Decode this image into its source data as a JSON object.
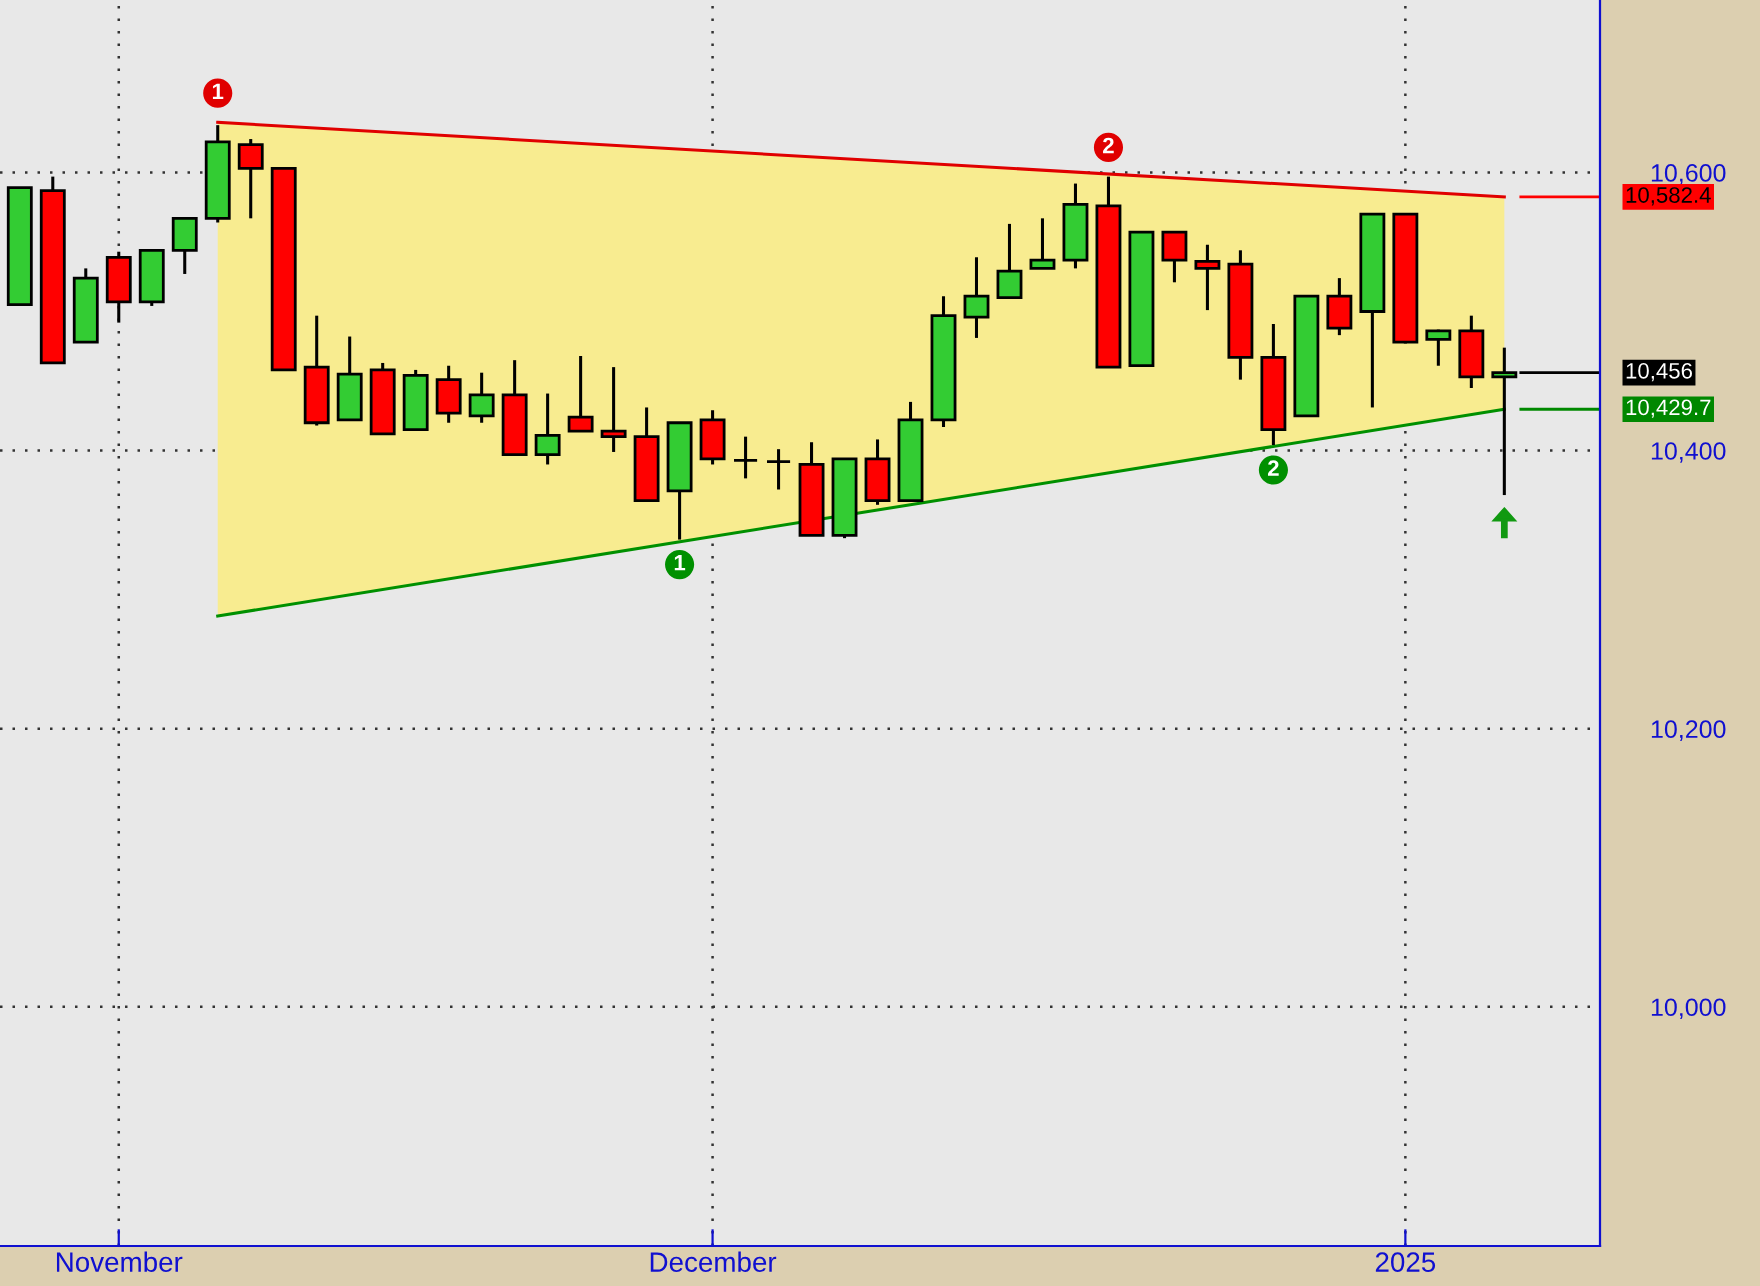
{
  "chart_data": {
    "type": "candlestick",
    "categories": [
      null,
      null,
      null,
      "November",
      null,
      null,
      null,
      null,
      null,
      null,
      null,
      null,
      null,
      null,
      null,
      null,
      null,
      null,
      null,
      null,
      null,
      "December",
      null,
      null,
      null,
      null,
      null,
      null,
      null,
      null,
      null,
      null,
      null,
      null,
      null,
      null,
      null,
      null,
      null,
      null,
      null,
      null,
      "2025",
      null,
      null,
      null
    ],
    "ohlc": [
      [
        10505,
        10589,
        10505,
        10589
      ],
      [
        10587,
        10597,
        10463,
        10463
      ],
      [
        10478,
        10531,
        10478,
        10524
      ],
      [
        10539,
        10543,
        10492,
        10507
      ],
      [
        10507,
        10544,
        10504,
        10544
      ],
      [
        10544,
        10567,
        10527,
        10567
      ],
      [
        10567,
        10634,
        10564,
        10622
      ],
      [
        10620,
        10624,
        10567,
        10603
      ],
      [
        10603,
        10603,
        10458,
        10458
      ],
      [
        10460,
        10497,
        10418,
        10420
      ],
      [
        10422,
        10482,
        10422,
        10455
      ],
      [
        10458,
        10463,
        10412,
        10412
      ],
      [
        10415,
        10458,
        10415,
        10454
      ],
      [
        10451,
        10461,
        10420,
        10427
      ],
      [
        10425,
        10456,
        10420,
        10440
      ],
      [
        10440,
        10465,
        10397,
        10397
      ],
      [
        10397,
        10441,
        10390,
        10411
      ],
      [
        10424,
        10468,
        10414,
        10414
      ],
      [
        10414,
        10460,
        10399,
        10410
      ],
      [
        10410,
        10431,
        10364,
        10364
      ],
      [
        10371,
        10420,
        10336,
        10420
      ],
      [
        10422,
        10429,
        10390,
        10394
      ],
      [
        10393,
        10410,
        10380,
        10393
      ],
      [
        10392,
        10401,
        10372,
        10392
      ],
      [
        10390,
        10406,
        10339,
        10339
      ],
      [
        10339,
        10394,
        10337,
        10394
      ],
      [
        10394,
        10408,
        10361,
        10364
      ],
      [
        10364,
        10435,
        10364,
        10422
      ],
      [
        10422,
        10511,
        10417,
        10497
      ],
      [
        10496,
        10539,
        10481,
        10511
      ],
      [
        10510,
        10563,
        10510,
        10529
      ],
      [
        10531,
        10567,
        10531,
        10537
      ],
      [
        10537,
        10592,
        10531,
        10577
      ],
      [
        10576,
        10597,
        10460,
        10460
      ],
      [
        10461,
        10557,
        10461,
        10557
      ],
      [
        10557,
        10557,
        10521,
        10537
      ],
      [
        10536,
        10548,
        10501,
        10531
      ],
      [
        10534,
        10544,
        10451,
        10467
      ],
      [
        10467,
        10491,
        10404,
        10415
      ],
      [
        10425,
        10511,
        10425,
        10511
      ],
      [
        10511,
        10524,
        10483,
        10488
      ],
      [
        10500,
        10570,
        10431,
        10570
      ],
      [
        10570,
        10570,
        10477,
        10478
      ],
      [
        10480,
        10487,
        10461,
        10486
      ],
      [
        10486,
        10497,
        10445,
        10453
      ],
      [
        10453,
        10474,
        10368,
        10456
      ]
    ],
    "series": [
      {
        "type": "line",
        "color": "#e00000",
        "values": [
          null,
          null,
          null,
          null,
          null,
          null,
          10636,
          null,
          null,
          null,
          null,
          null,
          null,
          null,
          null,
          null,
          null,
          null,
          null,
          null,
          null,
          null,
          null,
          null,
          null,
          null,
          null,
          null,
          null,
          null,
          null,
          null,
          null,
          null,
          null,
          null,
          null,
          null,
          null,
          null,
          null,
          null,
          null,
          null,
          null,
          10582.4
        ],
        "lower": [
          null,
          null,
          null,
          null,
          null,
          null,
          10281,
          null,
          null,
          null,
          null,
          null,
          null,
          null,
          null,
          null,
          null,
          null,
          null,
          null,
          null,
          null,
          null,
          null,
          null,
          null,
          null,
          null,
          null,
          null,
          null,
          null,
          null,
          null,
          null,
          null,
          null,
          null,
          null,
          null,
          null,
          null,
          null,
          null,
          null,
          10429.7
        ],
        "upper": [
          null,
          null,
          null,
          null,
          null,
          null,
          10636,
          null,
          null,
          null,
          null,
          null,
          null,
          null,
          null,
          null,
          null,
          null,
          null,
          null,
          null,
          null,
          null,
          null,
          null,
          null,
          null,
          null,
          null,
          null,
          null,
          null,
          null,
          null,
          null,
          null,
          null,
          null,
          null,
          null,
          null,
          null,
          null,
          null,
          null,
          10582.4
        ]
      },
      {
        "type": "line",
        "color": "#009000",
        "values": [
          null,
          null,
          null,
          null,
          null,
          null,
          10281,
          null,
          null,
          null,
          null,
          null,
          null,
          null,
          null,
          null,
          null,
          null,
          null,
          null,
          null,
          null,
          null,
          null,
          null,
          null,
          null,
          null,
          null,
          null,
          null,
          null,
          null,
          null,
          null,
          null,
          null,
          null,
          null,
          null,
          null,
          null,
          null,
          null,
          null,
          10429.7
        ]
      },
      {
        "type": "scatter",
        "color": "#e00000",
        "values": [
          null,
          null,
          null,
          null,
          null,
          null,
          10657,
          null,
          null,
          null,
          null,
          null,
          null,
          null,
          null,
          null,
          null,
          null,
          null,
          null,
          null,
          null,
          null,
          null,
          null,
          null,
          null,
          null,
          null,
          null,
          null,
          null,
          null,
          10618,
          null,
          null,
          null,
          null,
          null,
          null,
          null,
          null,
          null,
          null,
          null,
          null
        ]
      },
      {
        "type": "scatter",
        "color": "#009000",
        "values": [
          null,
          null,
          null,
          null,
          null,
          null,
          null,
          null,
          null,
          null,
          null,
          null,
          null,
          null,
          null,
          null,
          null,
          null,
          null,
          null,
          10318,
          null,
          null,
          null,
          null,
          null,
          null,
          null,
          null,
          null,
          null,
          null,
          null,
          null,
          null,
          null,
          null,
          null,
          10386,
          null,
          null,
          null,
          null,
          null,
          null,
          null
        ]
      }
    ],
    "annotations": [
      "1",
      "2",
      "1",
      "2"
    ],
    "ylim": [
      9828,
      10724
    ],
    "yticks": [
      {
        "value": 10000,
        "label": "10,000"
      },
      {
        "value": 10200,
        "label": "10,200"
      },
      {
        "value": 10400,
        "label": "10,400"
      },
      {
        "value": 10600,
        "label": "10,600"
      }
    ],
    "ref_lines": [
      {
        "axis": "y",
        "value": 10582.4,
        "label": "10,582.4",
        "color": "#ff0000"
      },
      {
        "axis": "y",
        "value": 10456,
        "label": "10,456",
        "color": "#000000"
      },
      {
        "axis": "y",
        "value": 10429.7,
        "label": "10,429.7",
        "color": "#008800"
      }
    ],
    "grid": true
  }
}
